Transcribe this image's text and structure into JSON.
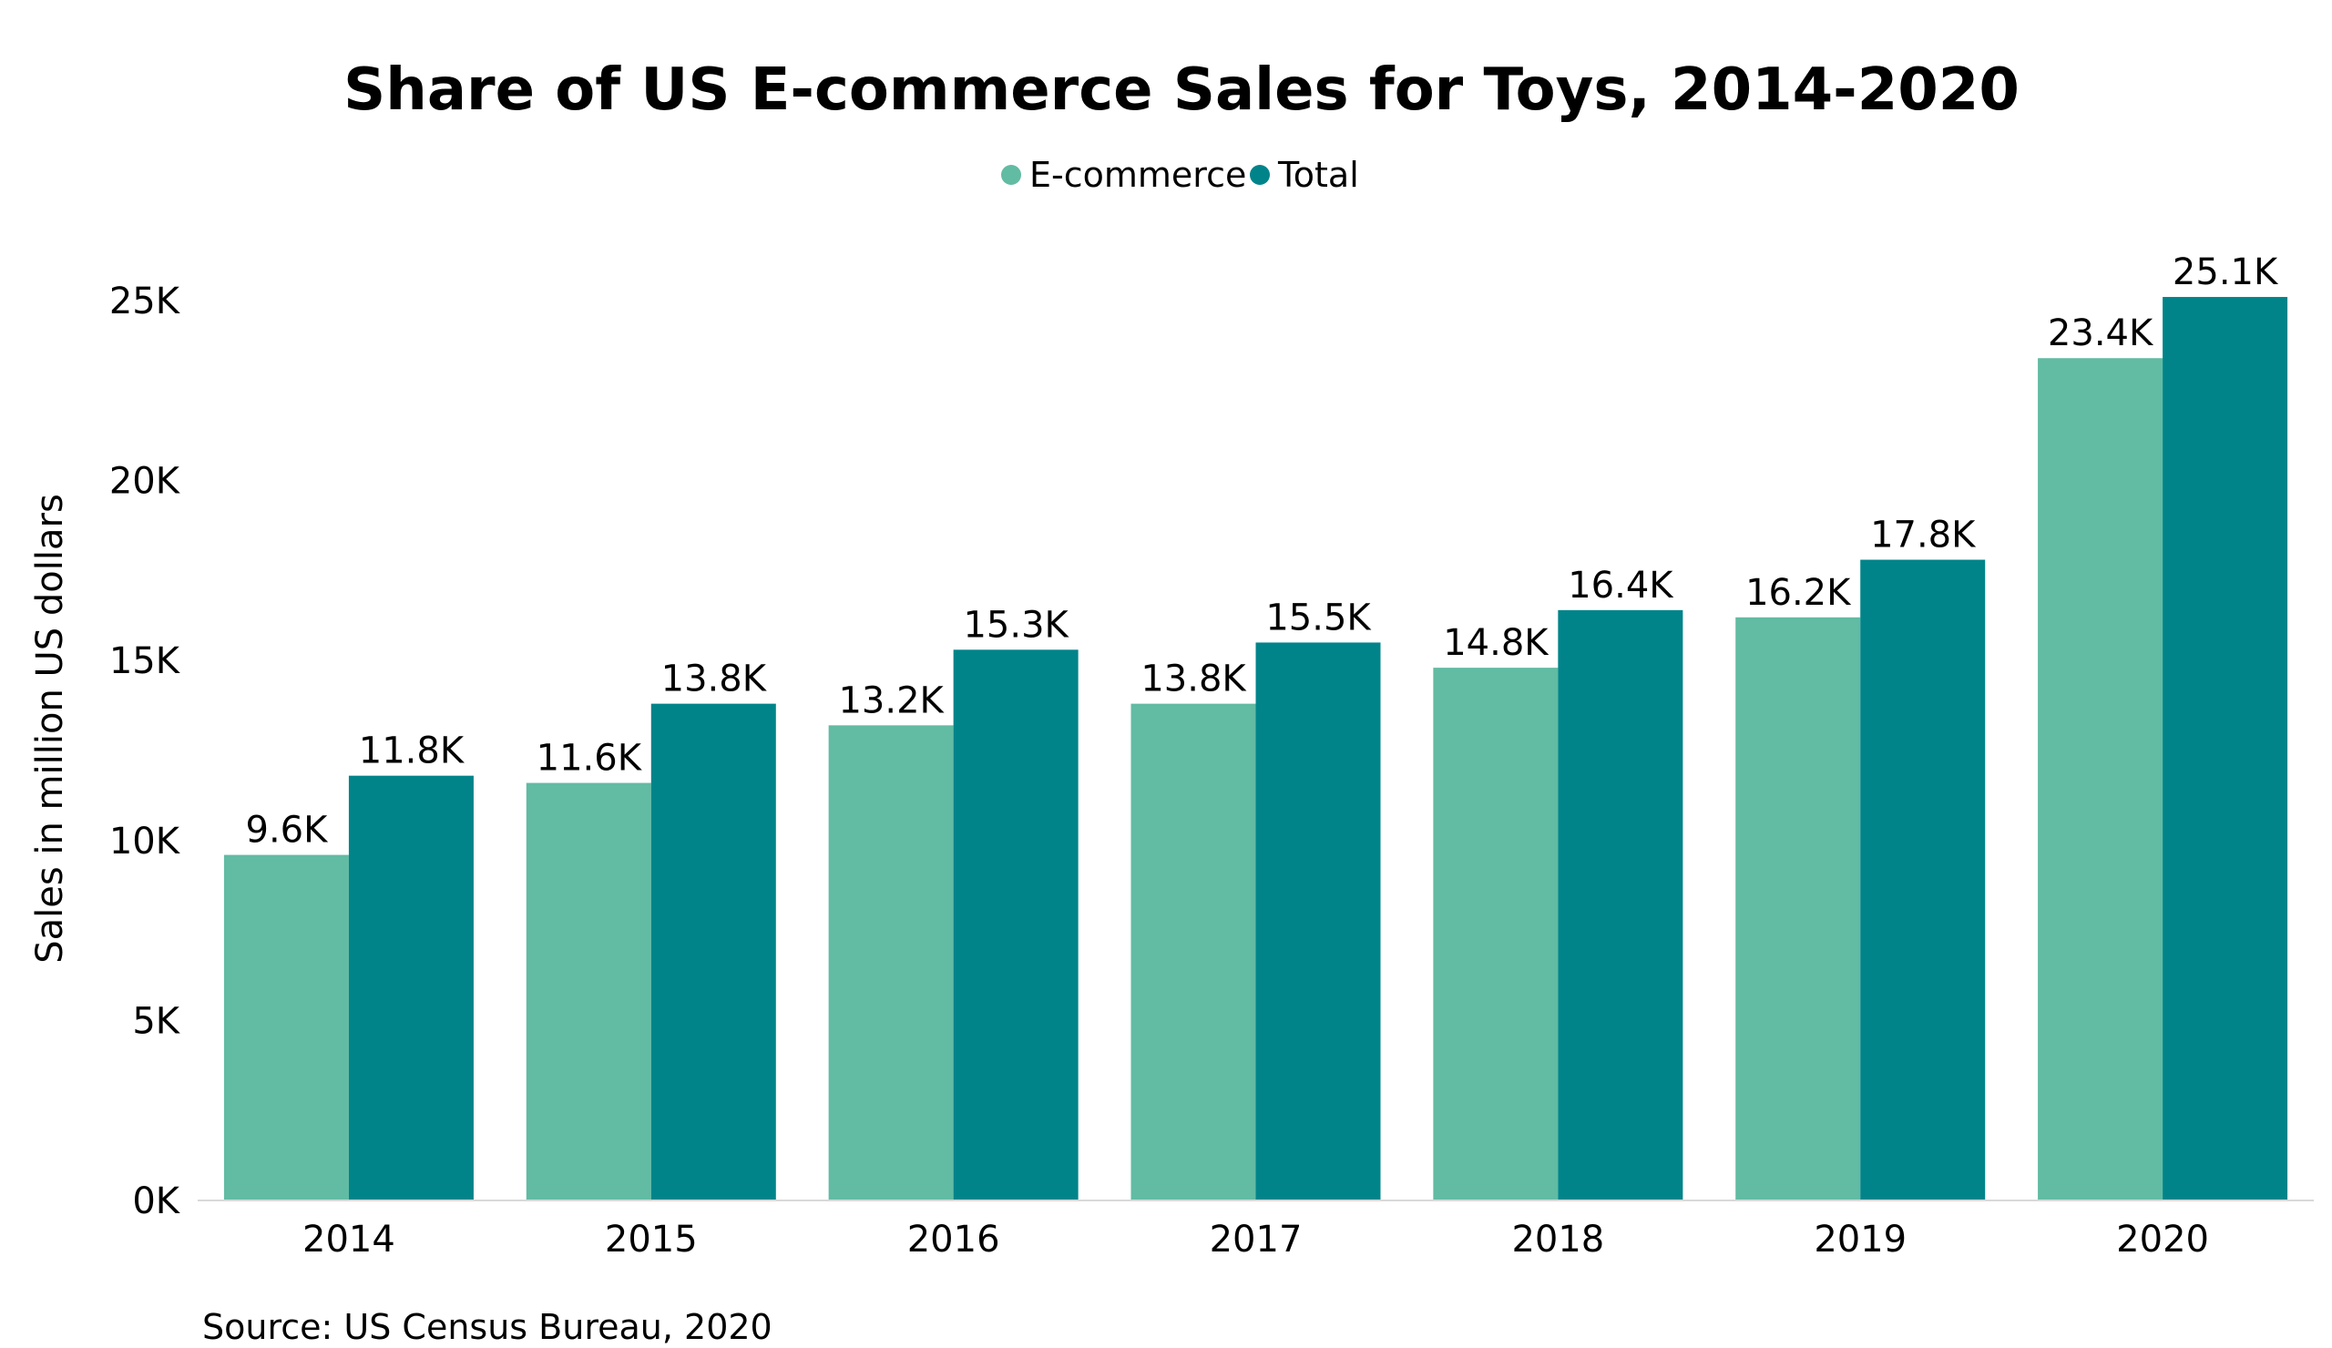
{
  "chart_data": {
    "type": "bar",
    "title": "Share of US E-commerce Sales for Toys, 2014-2020",
    "ylabel": "Sales in million US dollars",
    "xlabel": "",
    "categories": [
      "2014",
      "2015",
      "2016",
      "2017",
      "2018",
      "2019",
      "2020"
    ],
    "series": [
      {
        "name": "E-commerce",
        "color": "#62bba3",
        "values": [
          9.6,
          11.6,
          13.2,
          13.8,
          14.8,
          16.2,
          23.4
        ],
        "labels": [
          "9.6K",
          "11.6K",
          "13.2K",
          "13.8K",
          "14.8K",
          "16.2K",
          "23.4K"
        ]
      },
      {
        "name": "Total",
        "color": "#00848a",
        "values": [
          11.8,
          13.8,
          15.3,
          15.5,
          16.4,
          17.8,
          25.1
        ],
        "labels": [
          "11.8K",
          "13.8K",
          "15.3K",
          "15.5K",
          "16.4K",
          "17.8K",
          "25.1K"
        ]
      }
    ],
    "ylim": [
      0,
      25
    ],
    "yticks": [
      0,
      5,
      10,
      15,
      20,
      25
    ],
    "ytick_labels": [
      "0K",
      "5K",
      "10K",
      "15K",
      "20K",
      "25K"
    ],
    "grid": false,
    "legend_position": "top-center",
    "source": "Source: US Census Bureau, 2020"
  }
}
